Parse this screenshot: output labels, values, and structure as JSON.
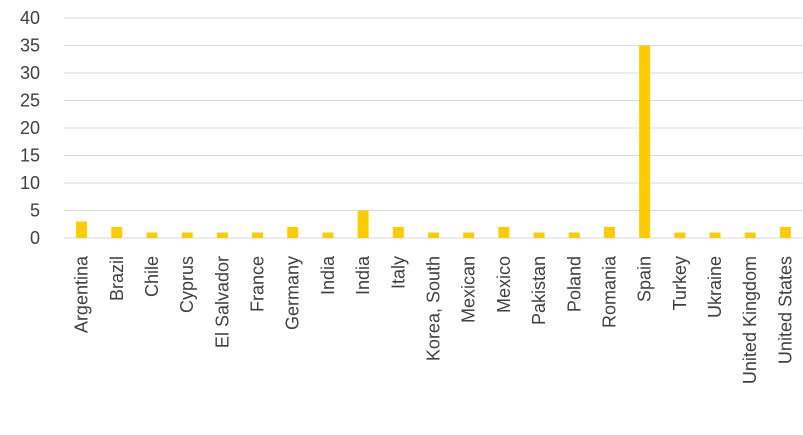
{
  "chart_data": {
    "type": "bar",
    "categories": [
      "Argentina",
      "Brazil",
      "Chile",
      "Cyprus",
      "El Salvador",
      "France",
      "Germany",
      "India",
      "India",
      "Italy",
      "Korea, South",
      "Mexican",
      "Mexico",
      "Pakistan",
      "Poland",
      "Romania",
      "Spain",
      "Turkey",
      "Ukraine",
      "United Kingdom",
      "United States"
    ],
    "values": [
      3,
      2,
      1,
      1,
      1,
      1,
      2,
      1,
      5,
      2,
      1,
      1,
      2,
      1,
      1,
      2,
      35,
      1,
      1,
      1,
      2
    ],
    "yticks": [
      "0",
      "5",
      "10",
      "15",
      "20",
      "25",
      "30",
      "35",
      "40"
    ],
    "ylim": [
      0,
      40
    ],
    "grid": true,
    "bar_color": "#ffcc00",
    "title": "",
    "xlabel": "",
    "ylabel": ""
  }
}
